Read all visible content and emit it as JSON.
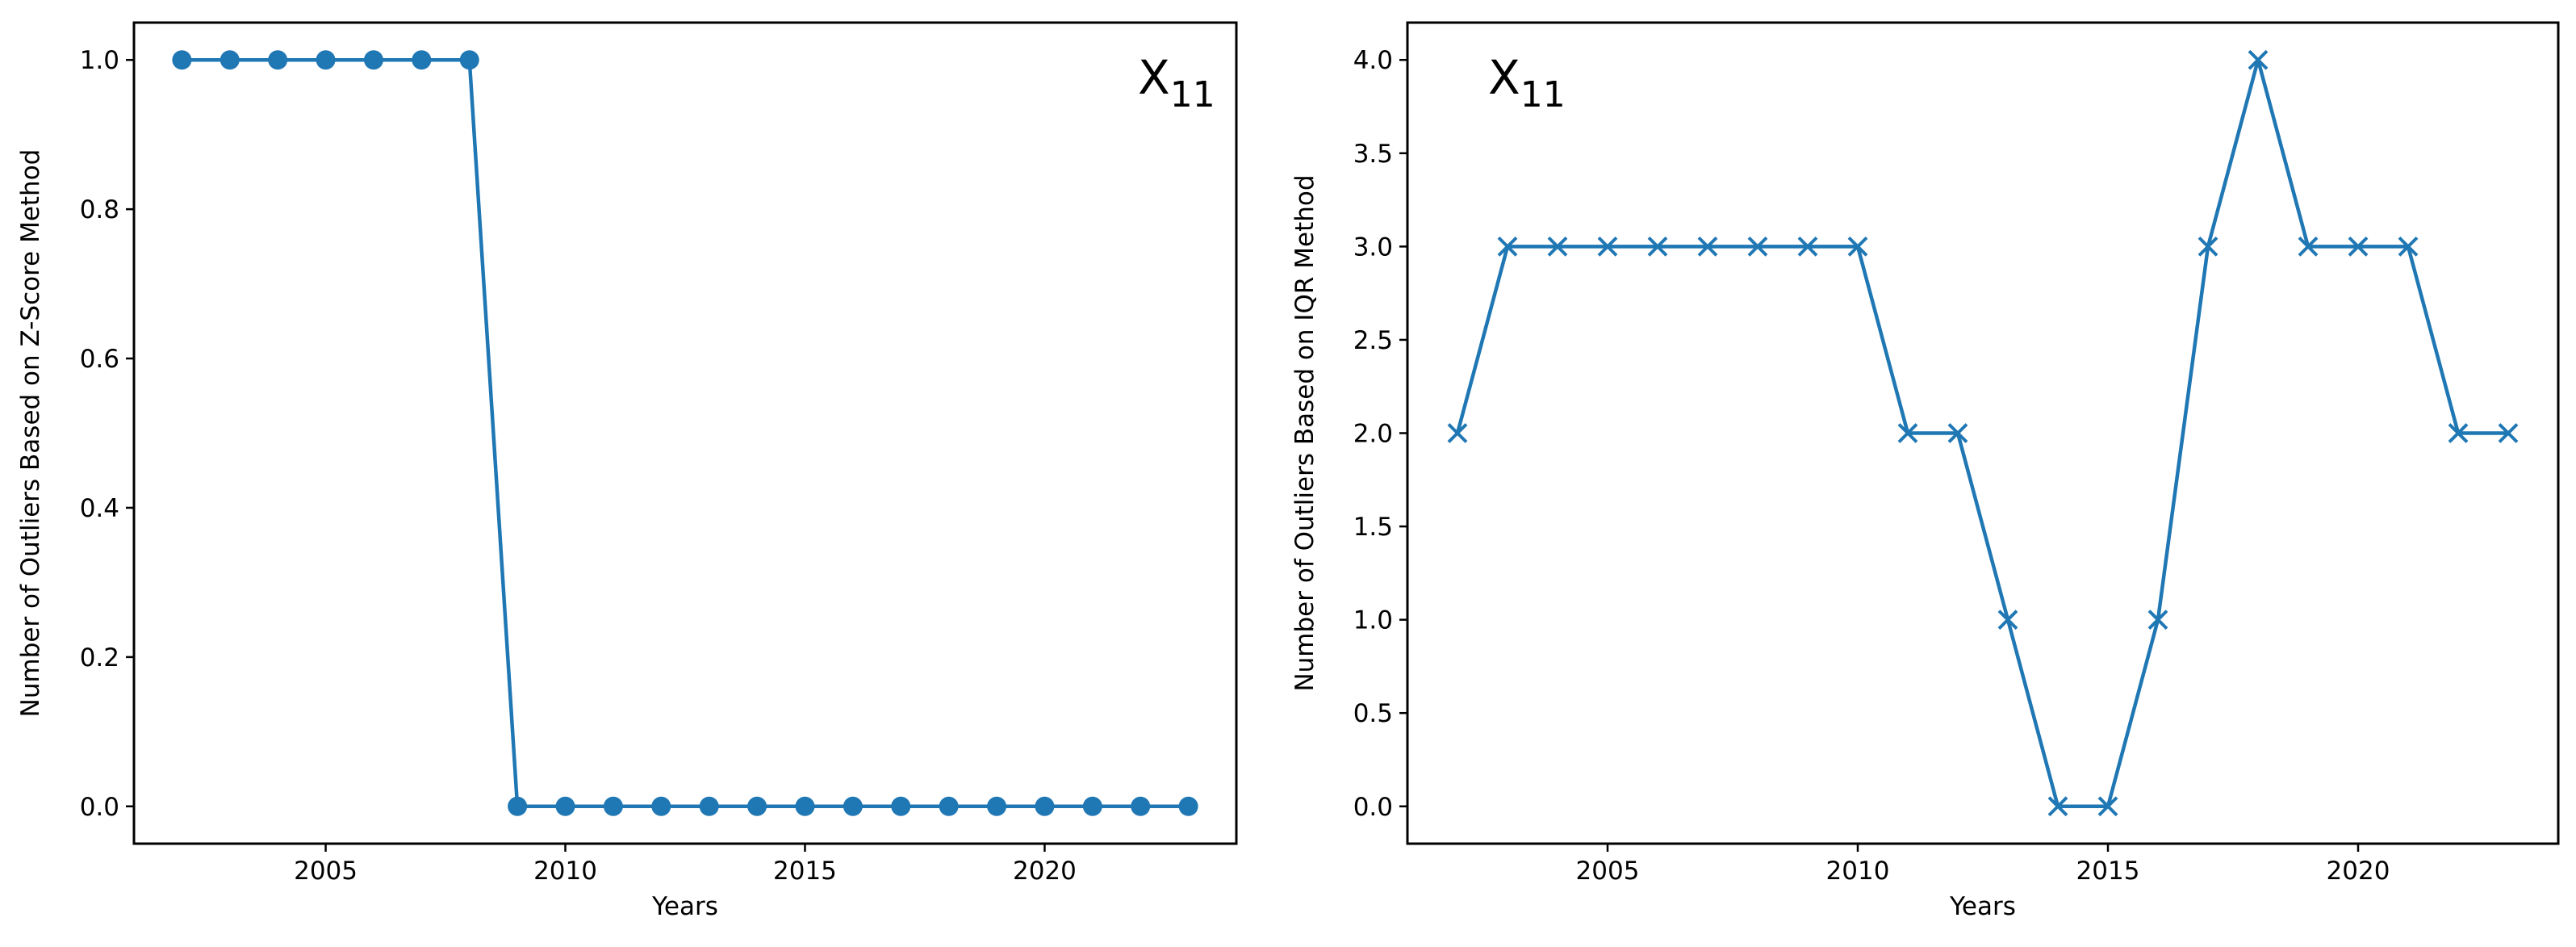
{
  "chart_data": [
    {
      "type": "line",
      "marker": "circle",
      "title": "X",
      "title_subscript": "11",
      "title_position": "top-right",
      "xlabel": "Years",
      "ylabel": "Number of Outliers Based on Z-Score Method",
      "xlim": [
        2001.0,
        2024.0
      ],
      "ylim": [
        -0.05,
        1.05
      ],
      "xticks": [
        2005,
        2010,
        2015,
        2020
      ],
      "yticks": [
        0.0,
        0.2,
        0.4,
        0.6,
        0.8,
        1.0
      ],
      "ytick_labels": [
        "0.0",
        "0.2",
        "0.4",
        "0.6",
        "0.8",
        "1.0"
      ],
      "grid": false,
      "color": "#1f77b4",
      "x": [
        2002,
        2003,
        2004,
        2005,
        2006,
        2007,
        2008,
        2009,
        2010,
        2011,
        2012,
        2013,
        2014,
        2015,
        2016,
        2017,
        2018,
        2019,
        2020,
        2021,
        2022,
        2023
      ],
      "y": [
        1,
        1,
        1,
        1,
        1,
        1,
        1,
        0,
        0,
        0,
        0,
        0,
        0,
        0,
        0,
        0,
        0,
        0,
        0,
        0,
        0,
        0
      ]
    },
    {
      "type": "line",
      "marker": "x",
      "title": "X",
      "title_subscript": "11",
      "title_position": "top-left",
      "xlabel": "Years",
      "ylabel": "Number of Outliers Based on IQR Method",
      "xlim": [
        2001.0,
        2024.0
      ],
      "ylim": [
        -0.2,
        4.2
      ],
      "xticks": [
        2005,
        2010,
        2015,
        2020
      ],
      "yticks": [
        0.0,
        0.5,
        1.0,
        1.5,
        2.0,
        2.5,
        3.0,
        3.5,
        4.0
      ],
      "ytick_labels": [
        "0.0",
        "0.5",
        "1.0",
        "1.5",
        "2.0",
        "2.5",
        "3.0",
        "3.5",
        "4.0"
      ],
      "grid": false,
      "color": "#1f77b4",
      "x": [
        2002,
        2003,
        2004,
        2005,
        2006,
        2007,
        2008,
        2009,
        2010,
        2011,
        2012,
        2013,
        2014,
        2015,
        2016,
        2017,
        2018,
        2019,
        2020,
        2021,
        2022,
        2023
      ],
      "y": [
        2,
        3,
        3,
        3,
        3,
        3,
        3,
        3,
        3,
        2,
        2,
        1,
        0,
        0,
        1,
        3,
        4,
        3,
        3,
        3,
        2,
        2
      ]
    }
  ]
}
